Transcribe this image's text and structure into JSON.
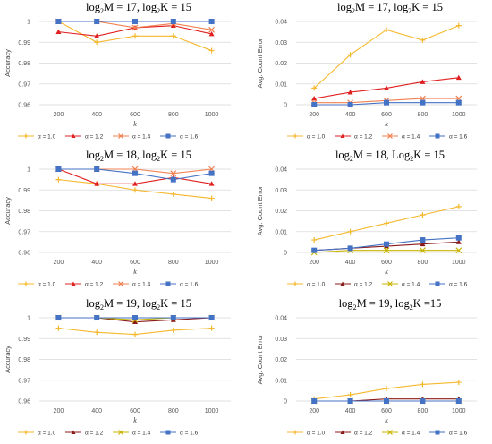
{
  "colors": {
    "a10": "#f5b82e",
    "a12": "#e02020",
    "a14": "#f08050",
    "a16": "#4472c4",
    "a12_dark": "#8b1a1a",
    "a14_olive": "#c8b400",
    "grid": "#d9d9d9"
  },
  "chart_data": [
    {
      "type": "line",
      "title_parts": [
        "log",
        "2",
        "M = 17, log",
        "2",
        "K = 15"
      ],
      "ylabel": "Accuracy",
      "xlabel": "k",
      "categories": [
        "200",
        "400",
        "600",
        "800",
        "1000"
      ],
      "ylim": [
        0.96,
        1.0
      ],
      "yticks": [
        "0.96",
        "0.97",
        "0.98",
        "0.99",
        "1"
      ],
      "grid": true,
      "legend": "bottom",
      "series": [
        {
          "name": "α = 1.0",
          "values": [
            1.0,
            0.99,
            0.993,
            0.993,
            0.986
          ],
          "marker": "plus",
          "color_key": "a10"
        },
        {
          "name": "α = 1.2",
          "values": [
            0.995,
            0.993,
            0.997,
            0.998,
            0.994
          ],
          "marker": "triangle",
          "color_key": "a12"
        },
        {
          "name": "α = 1.4",
          "values": [
            1.0,
            1.0,
            0.997,
            0.999,
            0.996
          ],
          "marker": "x",
          "color_key": "a14"
        },
        {
          "name": "α = 1.6",
          "values": [
            1.0,
            1.0,
            1.0,
            1.0,
            1.0
          ],
          "marker": "square",
          "color_key": "a16"
        }
      ]
    },
    {
      "type": "line",
      "title_parts": [
        "log",
        "2",
        "M = 17, log",
        "2",
        "K = 15"
      ],
      "ylabel": "Avg. Count Error",
      "xlabel": "k",
      "categories": [
        "200",
        "400",
        "600",
        "800",
        "1000"
      ],
      "ylim": [
        0,
        0.04
      ],
      "yticks": [
        "0",
        "0.01",
        "0.02",
        "0.03",
        "0.04"
      ],
      "grid": true,
      "legend": "bottom",
      "series": [
        {
          "name": "α = 1.0",
          "values": [
            0.008,
            0.024,
            0.036,
            0.031,
            0.038
          ],
          "marker": "plus",
          "color_key": "a10"
        },
        {
          "name": "α = 1.2",
          "values": [
            0.003,
            0.006,
            0.008,
            0.011,
            0.013
          ],
          "marker": "triangle",
          "color_key": "a12"
        },
        {
          "name": "α = 1.4",
          "values": [
            0.001,
            0.001,
            0.002,
            0.003,
            0.003
          ],
          "marker": "x",
          "color_key": "a14"
        },
        {
          "name": "α = 1.6",
          "values": [
            0.0,
            0.0,
            0.001,
            0.001,
            0.001
          ],
          "marker": "square",
          "color_key": "a16"
        }
      ]
    },
    {
      "type": "line",
      "title_parts": [
        "log",
        "2",
        "M = 18, log",
        "2",
        "K = 15"
      ],
      "ylabel": "Accuracy",
      "xlabel": "k",
      "categories": [
        "200",
        "400",
        "600",
        "800",
        "1000"
      ],
      "ylim": [
        0.96,
        1.0
      ],
      "yticks": [
        "0.96",
        "0.97",
        "0.98",
        "0.99",
        "1"
      ],
      "grid": true,
      "legend": "bottom",
      "series": [
        {
          "name": "α = 1.0",
          "values": [
            0.995,
            0.993,
            0.99,
            0.988,
            0.986
          ],
          "marker": "plus",
          "color_key": "a10"
        },
        {
          "name": "α = 1.2",
          "values": [
            1.0,
            0.993,
            0.993,
            0.996,
            0.993
          ],
          "marker": "triangle",
          "color_key": "a12"
        },
        {
          "name": "α = 1.4",
          "values": [
            1.0,
            1.0,
            1.0,
            0.998,
            1.0
          ],
          "marker": "x",
          "color_key": "a14"
        },
        {
          "name": "α = 1.6",
          "values": [
            1.0,
            1.0,
            0.998,
            0.995,
            0.998
          ],
          "marker": "square",
          "color_key": "a16"
        }
      ]
    },
    {
      "type": "line",
      "title_parts": [
        "log",
        "2",
        "M = 18, Log",
        "2",
        "K = 15"
      ],
      "ylabel": "Avg. Count Error",
      "xlabel": "k",
      "categories": [
        "200",
        "400",
        "600",
        "800",
        "1000"
      ],
      "ylim": [
        0,
        0.04
      ],
      "yticks": [
        "0",
        "0.01",
        "0.02",
        "0.03",
        "0.04"
      ],
      "grid": true,
      "legend": "bottom",
      "series": [
        {
          "name": "α = 1.0",
          "values": [
            0.006,
            0.01,
            0.014,
            0.018,
            0.022
          ],
          "marker": "plus",
          "color_key": "a10"
        },
        {
          "name": "α = 1.2",
          "values": [
            0.001,
            0.002,
            0.003,
            0.004,
            0.005
          ],
          "marker": "triangle",
          "color_key": "a12_dark"
        },
        {
          "name": "α = 1.4",
          "values": [
            0.0,
            0.001,
            0.001,
            0.001,
            0.001
          ],
          "marker": "x",
          "color_key": "a14_olive"
        },
        {
          "name": "α = 1.6",
          "values": [
            0.001,
            0.002,
            0.004,
            0.006,
            0.007
          ],
          "marker": "square",
          "color_key": "a16"
        }
      ]
    },
    {
      "type": "line",
      "title_parts": [
        "log",
        "2",
        "M = 19, log",
        "2",
        "K = 15"
      ],
      "ylabel": "Accuracy",
      "xlabel": "k",
      "categories": [
        "200",
        "400",
        "600",
        "800",
        "1000"
      ],
      "ylim": [
        0.96,
        1.0
      ],
      "yticks": [
        "0.96",
        "0.97",
        "0.98",
        "0.99",
        "1"
      ],
      "grid": true,
      "legend": "bottom",
      "series": [
        {
          "name": "α = 1.0",
          "values": [
            0.995,
            0.993,
            0.992,
            0.994,
            0.995
          ],
          "marker": "plus",
          "color_key": "a10"
        },
        {
          "name": "α = 1.2",
          "values": [
            1.0,
            1.0,
            0.998,
            0.999,
            1.0
          ],
          "marker": "triangle",
          "color_key": "a12_dark"
        },
        {
          "name": "α = 1.4",
          "values": [
            1.0,
            1.0,
            0.999,
            1.0,
            1.0
          ],
          "marker": "x",
          "color_key": "a14_olive"
        },
        {
          "name": "α = 1.6",
          "values": [
            1.0,
            1.0,
            1.0,
            1.0,
            1.0
          ],
          "marker": "square",
          "color_key": "a16"
        }
      ]
    },
    {
      "type": "line",
      "title_parts": [
        "log",
        "2",
        "M = 19, log",
        "2",
        "K =15"
      ],
      "ylabel": "Avg. Count Error",
      "xlabel": "k",
      "categories": [
        "200",
        "400",
        "600",
        "800",
        "1000"
      ],
      "ylim": [
        0,
        0.04
      ],
      "yticks": [
        "0",
        "0.01",
        "0.02",
        "0.03",
        "0.04"
      ],
      "grid": true,
      "legend": "bottom",
      "series": [
        {
          "name": "α = 1.0",
          "values": [
            0.001,
            0.003,
            0.006,
            0.008,
            0.009
          ],
          "marker": "plus",
          "color_key": "a10"
        },
        {
          "name": "α = 1.2",
          "values": [
            0.0,
            0.0,
            0.001,
            0.001,
            0.001
          ],
          "marker": "triangle",
          "color_key": "a12_dark"
        },
        {
          "name": "α = 1.4",
          "values": [
            0.0,
            0.0,
            0.0,
            0.0,
            0.0
          ],
          "marker": "x",
          "color_key": "a14_olive"
        },
        {
          "name": "α = 1.6",
          "values": [
            0.0,
            0.0,
            0.0,
            0.0,
            0.0
          ],
          "marker": "square",
          "color_key": "a16"
        }
      ]
    }
  ]
}
